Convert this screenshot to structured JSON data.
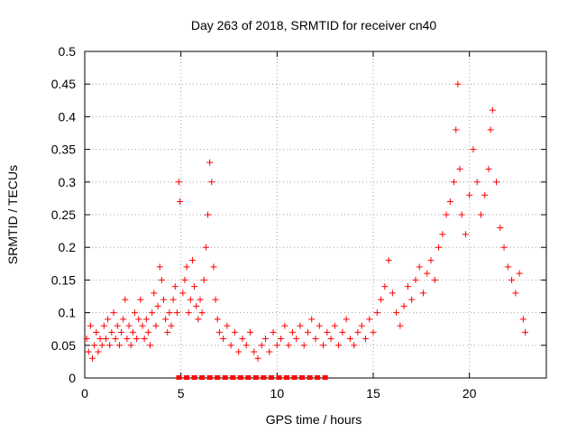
{
  "chart_data": {
    "type": "scatter",
    "title": "Day 263 of 2018, SRMTID for receiver cn40",
    "xlabel": "GPS time / hours",
    "ylabel": "SRMTID / TECUs",
    "xlim": [
      0,
      24.0
    ],
    "ylim": [
      0,
      0.5
    ],
    "xticks": [
      0,
      5,
      10,
      15,
      20
    ],
    "xtick_labels": [
      "0",
      "5",
      "10",
      "15",
      "20"
    ],
    "yticks": [
      0,
      0.05,
      0.1,
      0.15,
      0.2,
      0.25,
      0.3,
      0.35,
      0.4,
      0.45,
      0.5
    ],
    "ytick_labels": [
      "0",
      "0.05",
      "0.1",
      "0.15",
      "0.2",
      "0.25",
      "0.3",
      "0.35",
      "0.4",
      "0.45",
      "0.5"
    ],
    "grid": true,
    "marker_color": "#ff0000",
    "series": [
      {
        "name": "SRMTID",
        "marker": "plus",
        "points": [
          [
            0.1,
            0.06
          ],
          [
            0.2,
            0.04
          ],
          [
            0.3,
            0.08
          ],
          [
            0.4,
            0.03
          ],
          [
            0.5,
            0.05
          ],
          [
            0.6,
            0.07
          ],
          [
            0.7,
            0.04
          ],
          [
            0.8,
            0.06
          ],
          [
            0.9,
            0.05
          ],
          [
            1.0,
            0.08
          ],
          [
            1.1,
            0.06
          ],
          [
            1.2,
            0.09
          ],
          [
            1.3,
            0.05
          ],
          [
            1.4,
            0.07
          ],
          [
            1.5,
            0.1
          ],
          [
            1.6,
            0.06
          ],
          [
            1.7,
            0.08
          ],
          [
            1.8,
            0.05
          ],
          [
            1.9,
            0.07
          ],
          [
            2.0,
            0.09
          ],
          [
            2.1,
            0.12
          ],
          [
            2.2,
            0.06
          ],
          [
            2.3,
            0.08
          ],
          [
            2.4,
            0.05
          ],
          [
            2.5,
            0.07
          ],
          [
            2.6,
            0.1
          ],
          [
            2.7,
            0.06
          ],
          [
            2.8,
            0.09
          ],
          [
            2.9,
            0.12
          ],
          [
            3.0,
            0.08
          ],
          [
            3.1,
            0.06
          ],
          [
            3.2,
            0.09
          ],
          [
            3.3,
            0.07
          ],
          [
            3.4,
            0.05
          ],
          [
            3.5,
            0.1
          ],
          [
            3.6,
            0.13
          ],
          [
            3.7,
            0.08
          ],
          [
            3.8,
            0.11
          ],
          [
            3.9,
            0.17
          ],
          [
            4.0,
            0.15
          ],
          [
            4.1,
            0.12
          ],
          [
            4.2,
            0.09
          ],
          [
            4.3,
            0.07
          ],
          [
            4.4,
            0.1
          ],
          [
            4.5,
            0.08
          ],
          [
            4.6,
            0.12
          ],
          [
            4.7,
            0.14
          ],
          [
            4.8,
            0.1
          ],
          [
            4.9,
            0.3
          ],
          [
            4.95,
            0.27
          ],
          [
            5.1,
            0.13
          ],
          [
            5.2,
            0.15
          ],
          [
            5.3,
            0.17
          ],
          [
            5.4,
            0.1
          ],
          [
            5.5,
            0.12
          ],
          [
            5.6,
            0.18
          ],
          [
            5.7,
            0.14
          ],
          [
            5.8,
            0.11
          ],
          [
            5.9,
            0.09
          ],
          [
            6.0,
            0.12
          ],
          [
            6.1,
            0.1
          ],
          [
            6.2,
            0.15
          ],
          [
            6.3,
            0.2
          ],
          [
            6.4,
            0.25
          ],
          [
            6.5,
            0.33
          ],
          [
            6.6,
            0.3
          ],
          [
            6.7,
            0.17
          ],
          [
            6.8,
            0.12
          ],
          [
            6.9,
            0.09
          ],
          [
            7.0,
            0.07
          ],
          [
            7.2,
            0.06
          ],
          [
            7.4,
            0.08
          ],
          [
            7.6,
            0.05
          ],
          [
            7.8,
            0.07
          ],
          [
            8.0,
            0.04
          ],
          [
            8.2,
            0.06
          ],
          [
            8.4,
            0.05
          ],
          [
            8.6,
            0.07
          ],
          [
            8.8,
            0.04
          ],
          [
            9.0,
            0.03
          ],
          [
            9.2,
            0.05
          ],
          [
            9.4,
            0.06
          ],
          [
            9.6,
            0.04
          ],
          [
            9.8,
            0.07
          ],
          [
            10.0,
            0.05
          ],
          [
            10.2,
            0.06
          ],
          [
            10.4,
            0.08
          ],
          [
            10.6,
            0.05
          ],
          [
            10.8,
            0.07
          ],
          [
            11.0,
            0.06
          ],
          [
            11.2,
            0.08
          ],
          [
            11.4,
            0.05
          ],
          [
            11.6,
            0.07
          ],
          [
            11.8,
            0.09
          ],
          [
            12.0,
            0.06
          ],
          [
            12.2,
            0.08
          ],
          [
            12.4,
            0.05
          ],
          [
            12.6,
            0.07
          ],
          [
            12.8,
            0.06
          ],
          [
            13.0,
            0.08
          ],
          [
            13.2,
            0.05
          ],
          [
            13.4,
            0.07
          ],
          [
            13.6,
            0.09
          ],
          [
            13.8,
            0.06
          ],
          [
            14.0,
            0.05
          ],
          [
            14.2,
            0.07
          ],
          [
            14.4,
            0.08
          ],
          [
            14.6,
            0.06
          ],
          [
            14.8,
            0.09
          ],
          [
            15.0,
            0.07
          ],
          [
            15.2,
            0.1
          ],
          [
            15.4,
            0.12
          ],
          [
            15.6,
            0.14
          ],
          [
            15.8,
            0.18
          ],
          [
            16.0,
            0.13
          ],
          [
            16.2,
            0.1
          ],
          [
            16.4,
            0.08
          ],
          [
            16.6,
            0.11
          ],
          [
            16.8,
            0.14
          ],
          [
            17.0,
            0.12
          ],
          [
            17.2,
            0.15
          ],
          [
            17.4,
            0.17
          ],
          [
            17.6,
            0.13
          ],
          [
            17.8,
            0.16
          ],
          [
            18.0,
            0.18
          ],
          [
            18.2,
            0.15
          ],
          [
            18.4,
            0.2
          ],
          [
            18.6,
            0.22
          ],
          [
            18.8,
            0.25
          ],
          [
            19.0,
            0.27
          ],
          [
            19.2,
            0.3
          ],
          [
            19.3,
            0.38
          ],
          [
            19.4,
            0.45
          ],
          [
            19.5,
            0.32
          ],
          [
            19.6,
            0.25
          ],
          [
            19.8,
            0.22
          ],
          [
            20.0,
            0.28
          ],
          [
            20.2,
            0.35
          ],
          [
            20.4,
            0.3
          ],
          [
            20.6,
            0.25
          ],
          [
            20.8,
            0.28
          ],
          [
            21.0,
            0.32
          ],
          [
            21.1,
            0.38
          ],
          [
            21.2,
            0.41
          ],
          [
            21.4,
            0.3
          ],
          [
            21.6,
            0.23
          ],
          [
            21.8,
            0.2
          ],
          [
            22.0,
            0.17
          ],
          [
            22.2,
            0.15
          ],
          [
            22.4,
            0.13
          ],
          [
            22.6,
            0.16
          ],
          [
            22.8,
            0.09
          ],
          [
            22.9,
            0.07
          ]
        ]
      }
    ],
    "zero_markers_x": [
      4.9,
      5.3,
      5.7,
      6.1,
      6.5,
      6.9,
      7.3,
      7.7,
      8.1,
      8.5,
      8.9,
      9.3,
      9.7,
      10.1,
      10.5,
      10.9,
      11.3,
      11.7,
      12.1,
      12.5
    ]
  }
}
